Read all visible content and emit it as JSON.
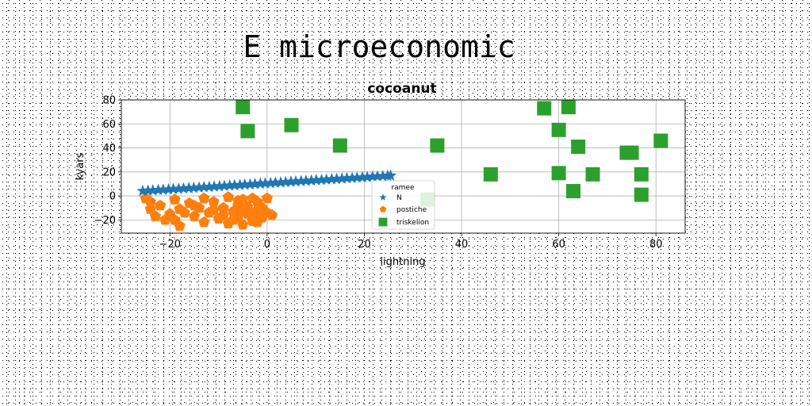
{
  "suptitle": "E microeconomic",
  "chart_data": {
    "type": "scatter",
    "title": "cocoanut",
    "xlabel": "lightning",
    "ylabel": "kyars",
    "xlim": [
      -30,
      86
    ],
    "ylim": [
      -31,
      80
    ],
    "xticks": [
      -20,
      0,
      20,
      40,
      60,
      80
    ],
    "yticks": [
      -20,
      0,
      20,
      40,
      60,
      80
    ],
    "xtick_labels": [
      "−20",
      "0",
      "20",
      "40",
      "60",
      "80"
    ],
    "ytick_labels": [
      "−20",
      "0",
      "20",
      "40",
      "60",
      "80"
    ],
    "grid": true,
    "legend": {
      "title": "ramee",
      "placement": "center"
    },
    "series": [
      {
        "name": "N",
        "marker": "star",
        "color": "#1f77b4",
        "points": [
          [
            -25.6,
            4.1
          ],
          [
            -24.5,
            4.4
          ],
          [
            -23.5,
            4.6
          ],
          [
            -22.4,
            4.9
          ],
          [
            -21.4,
            5.1
          ],
          [
            -20.3,
            5.4
          ],
          [
            -19.3,
            5.7
          ],
          [
            -18.2,
            5.9
          ],
          [
            -17.2,
            6.2
          ],
          [
            -16.1,
            6.5
          ],
          [
            -15.1,
            6.7
          ],
          [
            -14.0,
            7.0
          ],
          [
            -13.0,
            7.3
          ],
          [
            -11.9,
            7.5
          ],
          [
            -10.9,
            7.8
          ],
          [
            -9.8,
            8.1
          ],
          [
            -8.8,
            8.3
          ],
          [
            -7.7,
            8.6
          ],
          [
            -6.7,
            8.8
          ],
          [
            -5.6,
            9.1
          ],
          [
            -4.6,
            9.4
          ],
          [
            -3.5,
            9.6
          ],
          [
            -2.5,
            9.9
          ],
          [
            -1.4,
            10.2
          ],
          [
            -0.4,
            10.4
          ],
          [
            0.7,
            10.7
          ],
          [
            1.7,
            11.0
          ],
          [
            2.8,
            11.2
          ],
          [
            3.8,
            11.5
          ],
          [
            4.9,
            11.8
          ],
          [
            5.9,
            12.0
          ],
          [
            7.0,
            12.3
          ],
          [
            8.0,
            12.5
          ],
          [
            9.1,
            12.8
          ],
          [
            10.1,
            13.1
          ],
          [
            11.2,
            13.3
          ],
          [
            12.2,
            13.6
          ],
          [
            13.3,
            13.9
          ],
          [
            14.3,
            14.1
          ],
          [
            15.4,
            14.4
          ],
          [
            16.4,
            14.7
          ],
          [
            17.5,
            14.9
          ],
          [
            18.5,
            15.2
          ],
          [
            19.6,
            15.4
          ],
          [
            20.6,
            15.7
          ],
          [
            21.7,
            16.0
          ],
          [
            22.7,
            16.2
          ],
          [
            23.8,
            16.5
          ],
          [
            24.8,
            16.8
          ],
          [
            25.4,
            16.9
          ]
        ]
      },
      {
        "name": "postiche",
        "marker": "pentagon",
        "color": "#ff7f0e",
        "points": [
          [
            -25,
            -2
          ],
          [
            -24,
            -11
          ],
          [
            -23,
            -17
          ],
          [
            -22,
            -8
          ],
          [
            -21,
            -20
          ],
          [
            -19,
            -3
          ],
          [
            -18,
            -11
          ],
          [
            -18,
            -25
          ],
          [
            -17,
            -14
          ],
          [
            -16,
            -6
          ],
          [
            -15,
            -17
          ],
          [
            -14,
            -10
          ],
          [
            -13,
            -2
          ],
          [
            -13,
            -22
          ],
          [
            -12,
            -14
          ],
          [
            -11,
            -5
          ],
          [
            -10,
            -19
          ],
          [
            -9,
            -10
          ],
          [
            -8,
            -1
          ],
          [
            -8,
            -23
          ],
          [
            -7,
            -13
          ],
          [
            -6,
            -8
          ],
          [
            -6,
            -18
          ],
          [
            -5,
            -3
          ],
          [
            -5,
            -24
          ],
          [
            -4,
            -15
          ],
          [
            -4,
            -9
          ],
          [
            -3,
            -21
          ],
          [
            -2,
            -5
          ],
          [
            -2,
            -12
          ],
          [
            -1,
            -18
          ],
          [
            0,
            -2
          ],
          [
            0,
            -14
          ],
          [
            -1,
            -10
          ],
          [
            -3,
            -2
          ],
          [
            -7,
            -20
          ],
          [
            -11,
            -12
          ],
          [
            -15,
            -8
          ],
          [
            -20,
            -15
          ],
          [
            -24,
            -5
          ],
          [
            -19,
            -20
          ],
          [
            -9,
            -16
          ],
          [
            -6,
            -4
          ],
          [
            -3,
            -16
          ],
          [
            1,
            -16
          ],
          [
            -2,
            -22
          ],
          [
            -5,
            -12
          ]
        ]
      },
      {
        "name": "triskelion",
        "marker": "square",
        "color": "#2ca02c",
        "points": [
          [
            -5,
            74
          ],
          [
            -4,
            54
          ],
          [
            5,
            59
          ],
          [
            15,
            42
          ],
          [
            33,
            -3
          ],
          [
            35,
            42
          ],
          [
            46,
            18
          ],
          [
            57,
            73
          ],
          [
            60,
            55
          ],
          [
            60,
            19
          ],
          [
            62,
            74
          ],
          [
            63,
            4
          ],
          [
            64,
            41
          ],
          [
            67,
            18
          ],
          [
            74,
            36
          ],
          [
            75,
            36
          ],
          [
            77,
            1
          ],
          [
            77,
            18
          ],
          [
            81,
            46
          ]
        ]
      }
    ]
  }
}
